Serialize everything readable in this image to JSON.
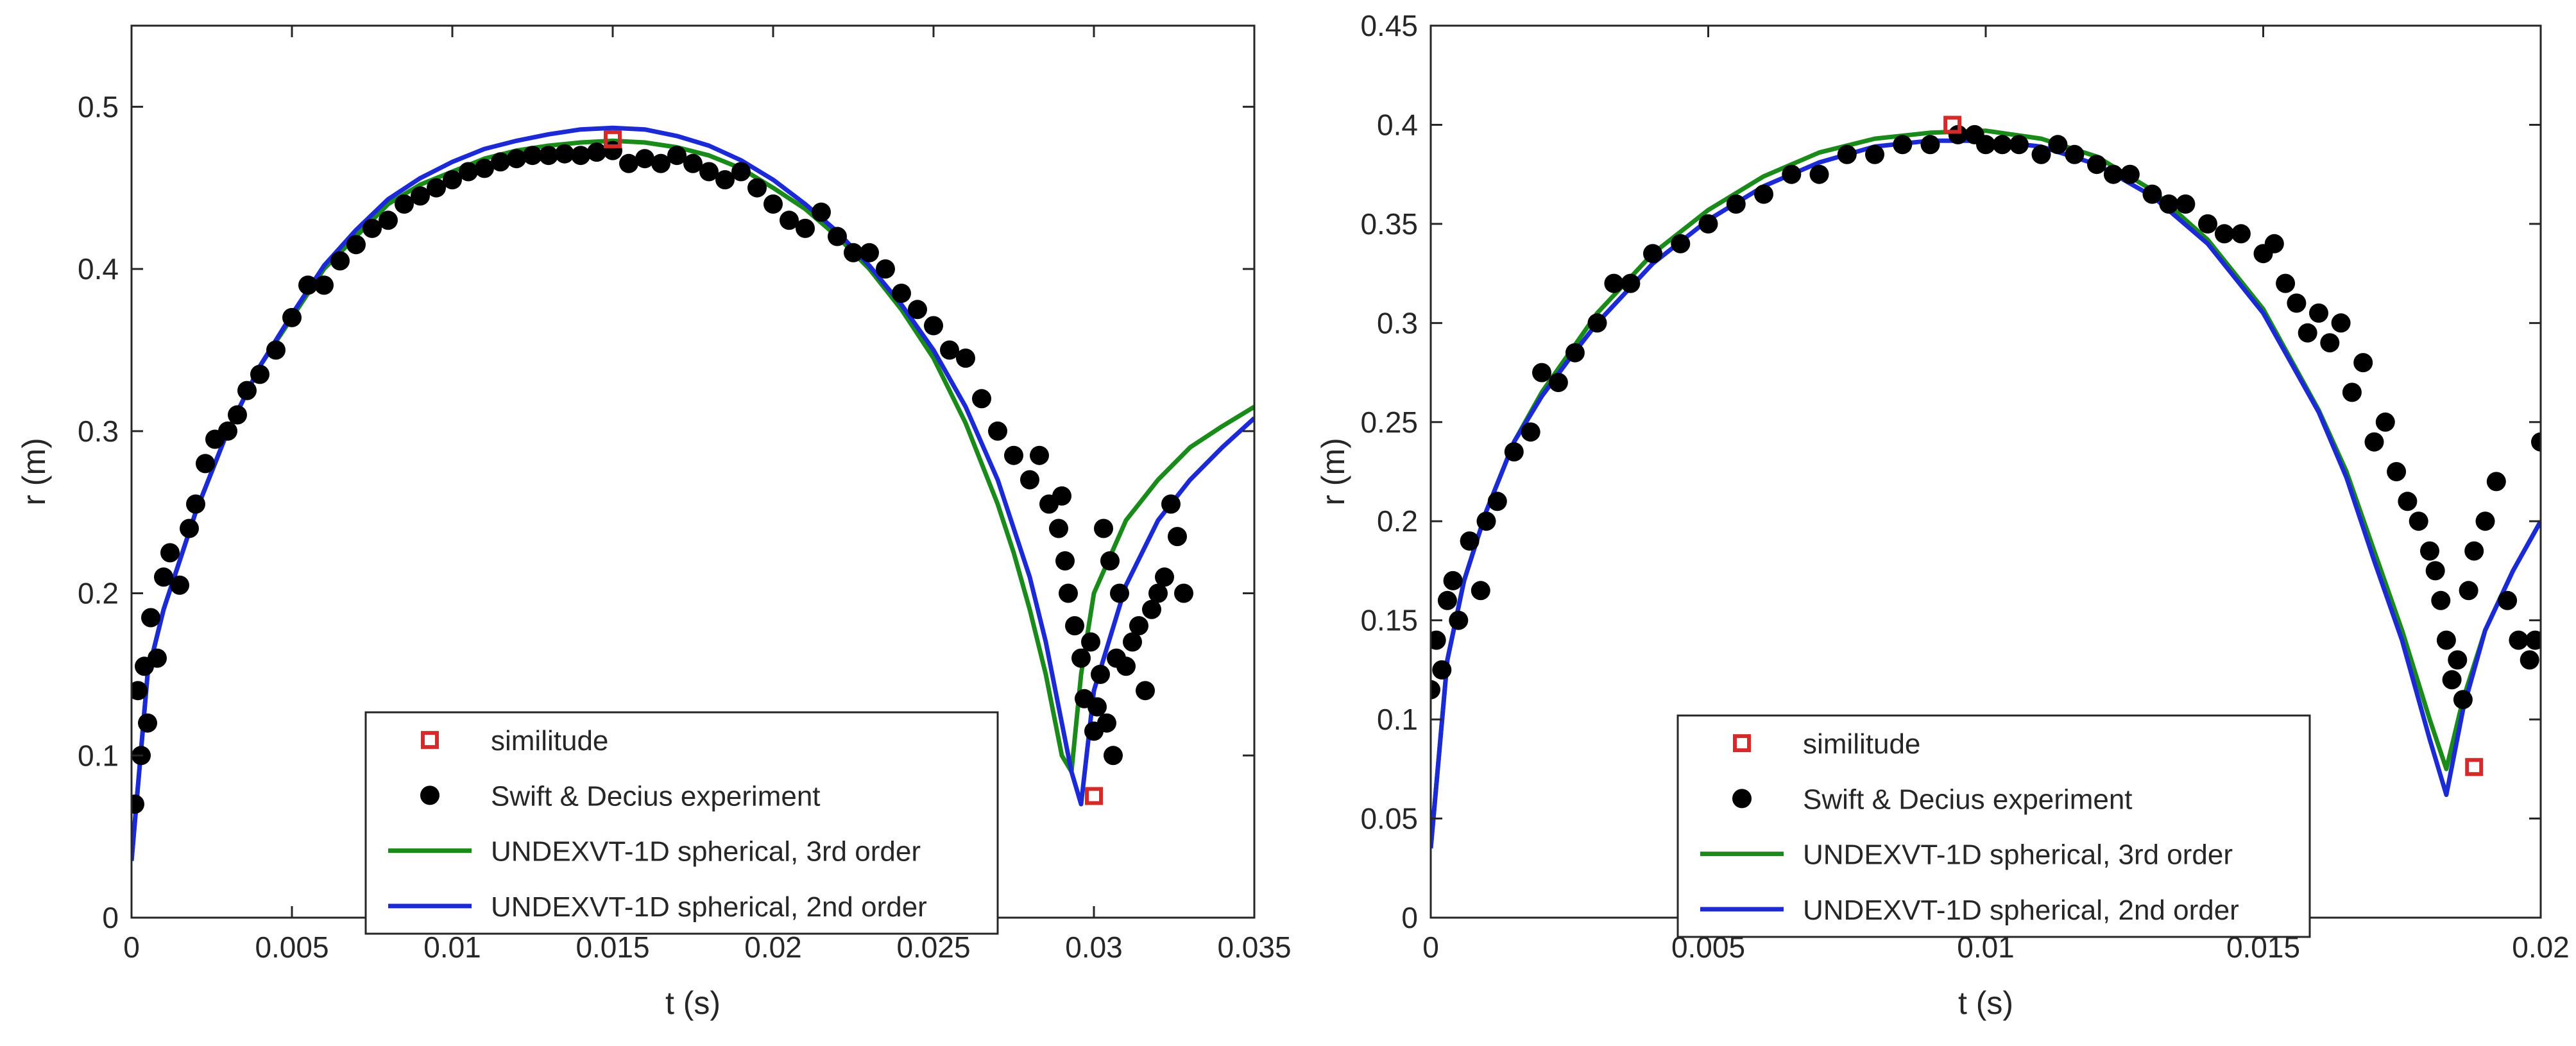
{
  "colors": {
    "green": "#1a8a1a",
    "blue": "#1c2ad6",
    "red": "#d42a2a",
    "black": "#000000",
    "axis": "#262626"
  },
  "chart_data": [
    {
      "type": "line",
      "xlabel": "t (s)",
      "ylabel": "r (m)",
      "xlim": [
        0,
        0.035
      ],
      "ylim": [
        0,
        0.55
      ],
      "xticks": [
        0,
        0.005,
        0.01,
        0.015,
        0.02,
        0.025,
        0.03,
        0.035
      ],
      "xtick_labels": [
        "0",
        "0.005",
        "0.01",
        "0.015",
        "0.02",
        "0.025",
        "0.03",
        "0.035"
      ],
      "yticks": [
        0,
        0.1,
        0.2,
        0.3,
        0.4,
        0.5
      ],
      "ytick_labels": [
        "0",
        "0.1",
        "0.2",
        "0.3",
        "0.4",
        "0.5"
      ],
      "legend_position": "bottom-center",
      "legend": [
        "similitude",
        "Swift & Decius experiment",
        "UNDEXVT-1D spherical, 3rd order",
        "UNDEXVT-1D spherical, 2nd order"
      ],
      "similitude": {
        "x": [
          0.015,
          0.03
        ],
        "y": [
          0.48,
          0.075
        ]
      },
      "series": [
        {
          "name": "UNDEXVT-1D spherical, 3rd order",
          "x": [
            0.0,
            0.0005,
            0.001,
            0.002,
            0.003,
            0.004,
            0.005,
            0.006,
            0.007,
            0.008,
            0.009,
            0.01,
            0.011,
            0.012,
            0.013,
            0.014,
            0.015,
            0.016,
            0.017,
            0.018,
            0.019,
            0.02,
            0.021,
            0.022,
            0.023,
            0.024,
            0.025,
            0.026,
            0.027,
            0.0275,
            0.028,
            0.0285,
            0.029,
            0.0293,
            0.0296,
            0.03,
            0.031,
            0.032,
            0.033,
            0.034,
            0.035
          ],
          "y": [
            0.035,
            0.15,
            0.19,
            0.25,
            0.3,
            0.34,
            0.37,
            0.4,
            0.42,
            0.44,
            0.452,
            0.46,
            0.468,
            0.473,
            0.476,
            0.478,
            0.479,
            0.478,
            0.475,
            0.47,
            0.462,
            0.45,
            0.437,
            0.42,
            0.4,
            0.375,
            0.345,
            0.305,
            0.255,
            0.225,
            0.19,
            0.15,
            0.1,
            0.09,
            0.15,
            0.2,
            0.245,
            0.27,
            0.29,
            0.303,
            0.315
          ]
        },
        {
          "name": "UNDEXVT-1D spherical, 2nd order",
          "x": [
            0.0,
            0.0005,
            0.001,
            0.002,
            0.003,
            0.004,
            0.005,
            0.006,
            0.007,
            0.008,
            0.009,
            0.01,
            0.011,
            0.012,
            0.013,
            0.014,
            0.015,
            0.016,
            0.017,
            0.018,
            0.019,
            0.02,
            0.021,
            0.022,
            0.023,
            0.024,
            0.025,
            0.026,
            0.027,
            0.028,
            0.0285,
            0.029,
            0.0293,
            0.0296,
            0.03,
            0.031,
            0.032,
            0.033,
            0.034,
            0.035
          ],
          "y": [
            0.035,
            0.15,
            0.19,
            0.25,
            0.3,
            0.34,
            0.372,
            0.402,
            0.424,
            0.443,
            0.456,
            0.466,
            0.474,
            0.479,
            0.483,
            0.486,
            0.487,
            0.486,
            0.482,
            0.476,
            0.467,
            0.455,
            0.44,
            0.423,
            0.402,
            0.378,
            0.35,
            0.315,
            0.27,
            0.21,
            0.17,
            0.12,
            0.09,
            0.07,
            0.14,
            0.205,
            0.245,
            0.27,
            0.29,
            0.308
          ]
        }
      ],
      "experiment": {
        "name": "Swift & Decius experiment",
        "x": [
          0.0001,
          0.0002,
          0.0003,
          0.0004,
          0.0005,
          0.0006,
          0.0008,
          0.001,
          0.0012,
          0.0015,
          0.0018,
          0.002,
          0.0023,
          0.0026,
          0.003,
          0.0033,
          0.0036,
          0.004,
          0.0045,
          0.005,
          0.0055,
          0.006,
          0.0065,
          0.007,
          0.0075,
          0.008,
          0.0085,
          0.009,
          0.0095,
          0.01,
          0.0105,
          0.011,
          0.0115,
          0.012,
          0.0125,
          0.013,
          0.0135,
          0.014,
          0.0145,
          0.015,
          0.0155,
          0.016,
          0.0165,
          0.017,
          0.0175,
          0.018,
          0.0185,
          0.019,
          0.0195,
          0.02,
          0.0205,
          0.021,
          0.0215,
          0.022,
          0.0225,
          0.023,
          0.0235,
          0.024,
          0.0245,
          0.025,
          0.0255,
          0.026,
          0.0265,
          0.027,
          0.0275,
          0.028,
          0.0283,
          0.0286,
          0.0289,
          0.029,
          0.0291,
          0.0292,
          0.0294,
          0.0296,
          0.0297,
          0.0299,
          0.03,
          0.0301,
          0.0302,
          0.0303,
          0.0304,
          0.0305,
          0.0306,
          0.0307,
          0.0308,
          0.031,
          0.0312,
          0.0314,
          0.0316,
          0.0318,
          0.032,
          0.0322,
          0.0324,
          0.0326,
          0.0328
        ],
        "y": [
          0.07,
          0.14,
          0.1,
          0.155,
          0.12,
          0.185,
          0.16,
          0.21,
          0.225,
          0.205,
          0.24,
          0.255,
          0.28,
          0.295,
          0.3,
          0.31,
          0.325,
          0.335,
          0.35,
          0.37,
          0.39,
          0.39,
          0.405,
          0.415,
          0.425,
          0.43,
          0.44,
          0.445,
          0.45,
          0.455,
          0.46,
          0.462,
          0.466,
          0.468,
          0.47,
          0.47,
          0.471,
          0.47,
          0.472,
          0.473,
          0.465,
          0.468,
          0.465,
          0.47,
          0.465,
          0.46,
          0.455,
          0.46,
          0.45,
          0.44,
          0.43,
          0.425,
          0.435,
          0.42,
          0.41,
          0.41,
          0.4,
          0.385,
          0.375,
          0.365,
          0.35,
          0.345,
          0.32,
          0.3,
          0.285,
          0.27,
          0.285,
          0.255,
          0.24,
          0.26,
          0.22,
          0.2,
          0.18,
          0.16,
          0.135,
          0.17,
          0.115,
          0.13,
          0.15,
          0.24,
          0.12,
          0.22,
          0.1,
          0.16,
          0.2,
          0.155,
          0.17,
          0.18,
          0.14,
          0.19,
          0.2,
          0.21,
          0.255,
          0.235,
          0.2
        ]
      }
    },
    {
      "type": "line",
      "xlabel": "t (s)",
      "ylabel": "r (m)",
      "xlim": [
        0,
        0.02
      ],
      "ylim": [
        0,
        0.45
      ],
      "xticks": [
        0,
        0.005,
        0.01,
        0.015,
        0.02
      ],
      "xtick_labels": [
        "0",
        "0.005",
        "0.01",
        "0.015",
        "0.02"
      ],
      "yticks": [
        0,
        0.05,
        0.1,
        0.15,
        0.2,
        0.25,
        0.3,
        0.35,
        0.4,
        0.45
      ],
      "ytick_labels": [
        "0",
        "0.05",
        "0.1",
        "0.15",
        "0.2",
        "0.25",
        "0.3",
        "0.35",
        "0.4",
        "0.45"
      ],
      "legend_position": "bottom-center",
      "legend": [
        "similitude",
        "Swift & Decius experiment",
        "UNDEXVT-1D spherical, 3rd order",
        "UNDEXVT-1D spherical, 2nd order"
      ],
      "similitude": {
        "x": [
          0.0094,
          0.0188
        ],
        "y": [
          0.4,
          0.076
        ]
      },
      "series": [
        {
          "name": "UNDEXVT-1D spherical, 3rd order",
          "x": [
            0.0,
            0.0003,
            0.0006,
            0.001,
            0.0015,
            0.002,
            0.0025,
            0.003,
            0.004,
            0.005,
            0.006,
            0.007,
            0.008,
            0.009,
            0.01,
            0.011,
            0.012,
            0.013,
            0.014,
            0.015,
            0.016,
            0.0165,
            0.017,
            0.0175,
            0.018,
            0.0183,
            0.0186,
            0.019,
            0.0195,
            0.02
          ],
          "y": [
            0.035,
            0.13,
            0.17,
            0.205,
            0.24,
            0.265,
            0.285,
            0.305,
            0.335,
            0.357,
            0.374,
            0.386,
            0.393,
            0.396,
            0.397,
            0.393,
            0.384,
            0.367,
            0.342,
            0.307,
            0.256,
            0.225,
            0.185,
            0.145,
            0.1,
            0.075,
            0.11,
            0.145,
            0.175,
            0.2
          ]
        },
        {
          "name": "UNDEXVT-1D spherical, 2nd order",
          "x": [
            0.0,
            0.0003,
            0.0006,
            0.001,
            0.0015,
            0.002,
            0.0025,
            0.003,
            0.004,
            0.005,
            0.006,
            0.007,
            0.008,
            0.009,
            0.01,
            0.011,
            0.012,
            0.013,
            0.014,
            0.015,
            0.016,
            0.0165,
            0.017,
            0.0175,
            0.018,
            0.0183,
            0.0186,
            0.019,
            0.0195,
            0.02
          ],
          "y": [
            0.035,
            0.13,
            0.17,
            0.205,
            0.24,
            0.263,
            0.282,
            0.3,
            0.33,
            0.352,
            0.369,
            0.381,
            0.389,
            0.392,
            0.392,
            0.389,
            0.38,
            0.364,
            0.34,
            0.305,
            0.255,
            0.222,
            0.18,
            0.14,
            0.09,
            0.062,
            0.105,
            0.145,
            0.175,
            0.2
          ]
        }
      ],
      "experiment": {
        "name": "Swift & Decius experiment",
        "x": [
          0.0,
          0.0001,
          0.0002,
          0.0003,
          0.0004,
          0.0005,
          0.0007,
          0.0009,
          0.001,
          0.0012,
          0.0015,
          0.0018,
          0.002,
          0.0023,
          0.0026,
          0.003,
          0.0033,
          0.0036,
          0.004,
          0.0045,
          0.005,
          0.0055,
          0.006,
          0.0065,
          0.007,
          0.0075,
          0.008,
          0.0085,
          0.009,
          0.0095,
          0.0098,
          0.01,
          0.0103,
          0.0106,
          0.011,
          0.0113,
          0.0116,
          0.012,
          0.0123,
          0.0126,
          0.013,
          0.0133,
          0.0136,
          0.014,
          0.0143,
          0.0146,
          0.015,
          0.0152,
          0.0154,
          0.0156,
          0.0158,
          0.016,
          0.0162,
          0.0164,
          0.0166,
          0.0168,
          0.017,
          0.0172,
          0.0174,
          0.0176,
          0.0178,
          0.018,
          0.0181,
          0.0182,
          0.0183,
          0.0184,
          0.0185,
          0.0186,
          0.0187,
          0.0188,
          0.019,
          0.0192,
          0.0194,
          0.0196,
          0.0198,
          0.0199,
          0.02
        ],
        "y": [
          0.115,
          0.14,
          0.125,
          0.16,
          0.17,
          0.15,
          0.19,
          0.165,
          0.2,
          0.21,
          0.235,
          0.245,
          0.275,
          0.27,
          0.285,
          0.3,
          0.32,
          0.32,
          0.335,
          0.34,
          0.35,
          0.36,
          0.365,
          0.375,
          0.375,
          0.385,
          0.385,
          0.39,
          0.39,
          0.395,
          0.395,
          0.39,
          0.39,
          0.39,
          0.385,
          0.39,
          0.385,
          0.38,
          0.375,
          0.375,
          0.365,
          0.36,
          0.36,
          0.35,
          0.345,
          0.345,
          0.335,
          0.34,
          0.32,
          0.31,
          0.295,
          0.305,
          0.29,
          0.3,
          0.265,
          0.28,
          0.24,
          0.25,
          0.225,
          0.21,
          0.2,
          0.185,
          0.175,
          0.16,
          0.14,
          0.12,
          0.13,
          0.11,
          0.165,
          0.185,
          0.2,
          0.22,
          0.16,
          0.14,
          0.13,
          0.14,
          0.24
        ]
      }
    }
  ]
}
